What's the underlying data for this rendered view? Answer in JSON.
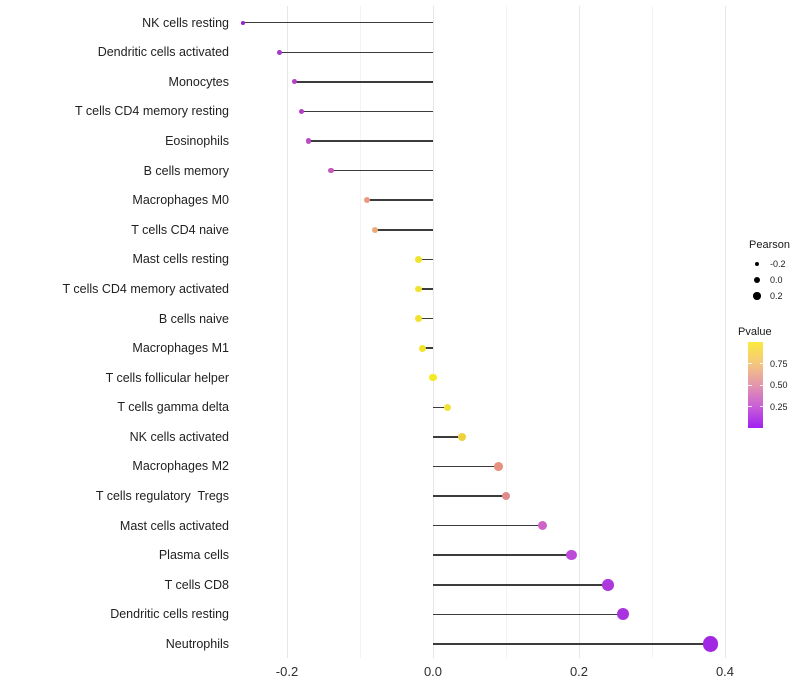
{
  "chart_data": {
    "type": "lollipop",
    "orientation": "horizontal",
    "title": "",
    "xlabel": "",
    "ylabel": "",
    "x_axis": {
      "major_ticks": [
        {
          "label": "-0.2",
          "value": -0.2
        },
        {
          "label": "0.0",
          "value": 0.0
        },
        {
          "label": "0.2",
          "value": 0.2
        },
        {
          "label": "0.4",
          "value": 0.4
        }
      ],
      "minor_gridlines": [
        -0.1,
        0.1,
        0.3
      ],
      "range": [
        -0.3,
        0.46
      ],
      "grid": "vertical-only"
    },
    "points": [
      {
        "label": "NK cells resting",
        "pearson": -0.26,
        "pvalue_est": 0.05,
        "color": "#9b23cc"
      },
      {
        "label": "Dendritic cells activated",
        "pearson": -0.21,
        "pvalue_est": 0.1,
        "color": "#a53ac8"
      },
      {
        "label": "Monocytes",
        "pearson": -0.19,
        "pvalue_est": 0.15,
        "color": "#b441c4"
      },
      {
        "label": "T cells CD4 memory resting",
        "pearson": -0.18,
        "pvalue_est": 0.15,
        "color": "#b43fc6"
      },
      {
        "label": "Eosinophils",
        "pearson": -0.17,
        "pvalue_est": 0.2,
        "color": "#bc4ac2"
      },
      {
        "label": "B cells memory",
        "pearson": -0.14,
        "pvalue_est": 0.25,
        "color": "#c757bb"
      },
      {
        "label": "Macrophages M0",
        "pearson": -0.09,
        "pvalue_est": 0.55,
        "color": "#e89b83"
      },
      {
        "label": "T cells CD4 naive",
        "pearson": -0.08,
        "pvalue_est": 0.6,
        "color": "#eda878"
      },
      {
        "label": "Mast cells resting",
        "pearson": -0.02,
        "pvalue_est": 0.9,
        "color": "#f0e32f"
      },
      {
        "label": "T cells CD4 memory activated",
        "pearson": -0.02,
        "pvalue_est": 0.9,
        "color": "#f0e32f"
      },
      {
        "label": "B cells naive",
        "pearson": -0.02,
        "pvalue_est": 0.9,
        "color": "#f0e32f"
      },
      {
        "label": "Macrophages M1",
        "pearson": -0.015,
        "pvalue_est": 0.92,
        "color": "#f1e52c"
      },
      {
        "label": "T cells follicular helper",
        "pearson": 0.0,
        "pvalue_est": 0.97,
        "color": "#f5ea22"
      },
      {
        "label": "T cells gamma delta",
        "pearson": 0.02,
        "pvalue_est": 0.92,
        "color": "#f0e134"
      },
      {
        "label": "NK cells activated",
        "pearson": 0.04,
        "pvalue_est": 0.85,
        "color": "#edd23e"
      },
      {
        "label": "Macrophages M2",
        "pearson": 0.09,
        "pvalue_est": 0.55,
        "color": "#e59380"
      },
      {
        "label": "T cells regulatory  Tregs",
        "pearson": 0.1,
        "pvalue_est": 0.5,
        "color": "#e08c8c"
      },
      {
        "label": "Mast cells activated",
        "pearson": 0.15,
        "pvalue_est": 0.3,
        "color": "#cd62c8"
      },
      {
        "label": "Plasma cells",
        "pearson": 0.19,
        "pvalue_est": 0.2,
        "color": "#bc49d8"
      },
      {
        "label": "T cells CD8",
        "pearson": 0.24,
        "pvalue_est": 0.12,
        "color": "#ac39dc"
      },
      {
        "label": "Dendritic cells resting",
        "pearson": 0.26,
        "pvalue_est": 0.1,
        "color": "#a934de"
      },
      {
        "label": "Neutrophils",
        "pearson": 0.38,
        "pvalue_est": 0.05,
        "color": "#a227e2"
      }
    ],
    "legend": {
      "size": {
        "title": "Pearson",
        "entries": [
          {
            "label": "-0.2",
            "value": -0.2
          },
          {
            "label": "0.0",
            "value": 0.0
          },
          {
            "label": "0.2",
            "value": 0.2
          }
        ],
        "key_color": "#000000"
      },
      "color": {
        "title": "Pvalue",
        "tick_labels": [
          "0.75",
          "0.50",
          "0.25"
        ],
        "tick_values": [
          0.75,
          0.5,
          0.25
        ],
        "bar_top_value": 1.0,
        "bar_bottom_value": 0.0,
        "gradient_stops_bottom_to_top": [
          "#a020f0",
          "#c95fd8",
          "#e396ac",
          "#f4c77e",
          "#fbea3e"
        ]
      }
    },
    "style": {
      "stem_color": "#3b3b3b",
      "grid_major_color": "#e7e7e7",
      "grid_minor_color": "#f3f3f3",
      "background": "#ffffff"
    }
  }
}
